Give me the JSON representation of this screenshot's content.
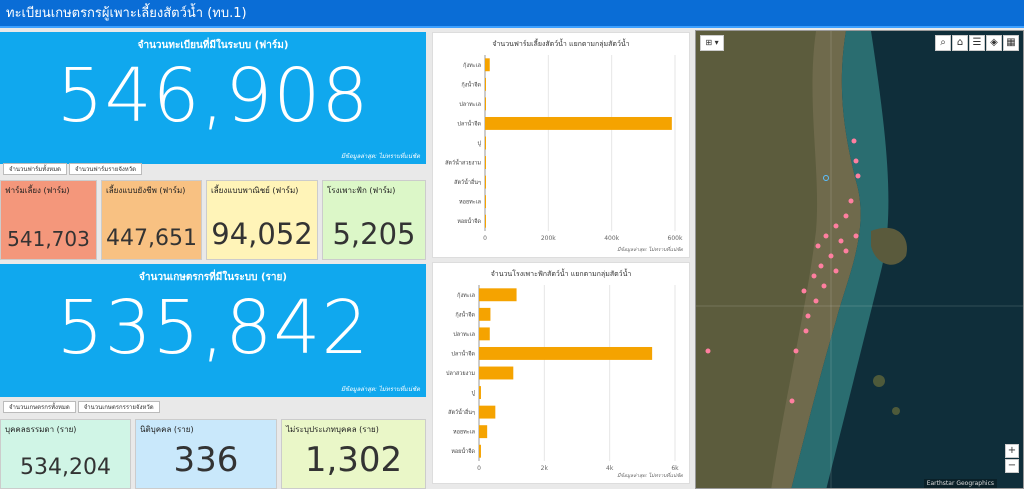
{
  "header": {
    "title": "ทะเบียนเกษตรกรผู้เพาะเลี้ยงสัตว์น้ำ (ทบ.1)"
  },
  "farms": {
    "title": "จำนวนทะเบียนที่มีในระบบ (ฟาร์ม)",
    "total": "546,908",
    "note": "มีข้อมูลล่าสุด: ไม่ทราบที่แน่ชัด",
    "tabs": [
      "จำนวนฟาร์มทั้งหมด",
      "จำนวนฟาร์มรายจังหวัด"
    ],
    "cards": [
      {
        "label": "ฟาร์มเลี้ยง (ฟาร์ม)",
        "value": "541,703",
        "bg": "#f4977b"
      },
      {
        "label": "เลี้ยงแบบยังชีพ (ฟาร์ม)",
        "value": "447,651",
        "bg": "#f8c182"
      },
      {
        "label": "เลี้ยงแบบพาณิชย์ (ฟาร์ม)",
        "value": "94,052",
        "bg": "#fff4b8"
      },
      {
        "label": "โรงเพาะฟัก (ฟาร์ม)",
        "value": "5,205",
        "bg": "#dcf7c8"
      }
    ]
  },
  "farmers": {
    "title": "จำนวนเกษตรกรที่มีในระบบ (ราย)",
    "total": "535,842",
    "note": "มีข้อมูลล่าสุด: ไม่ทราบที่แน่ชัด",
    "tabs": [
      "จำนวนเกษตรกรทั้งหมด",
      "จำนวนเกษตรกรรายจังหวัด"
    ],
    "cards": [
      {
        "label": "บุคคลธรรมดา (ราย)",
        "value": "534,204",
        "bg": "#d0f5e6"
      },
      {
        "label": "นิติบุคคล (ราย)",
        "value": "336",
        "bg": "#c9e8fb"
      },
      {
        "label": "ไม่ระบุประเภทบุคคล (ราย)",
        "value": "1,302",
        "bg": "#eaf7c8"
      }
    ]
  },
  "chart_data": [
    {
      "type": "bar",
      "orientation": "horizontal",
      "title": "จำนวนฟาร์มเลี้ยงสัตว์น้ำ แยกตามกลุ่มสัตว์น้ำ",
      "categories": [
        "กุ้งทะเล",
        "กุ้งน้ำจืด",
        "ปลาทะเล",
        "ปลาน้ำจืด",
        "ปู",
        "สัตว์น้ำสวยงาม",
        "สัตว์น้ำอื่นๆ",
        "หอยทะเล",
        "หอยน้ำจืด"
      ],
      "values": [
        15000,
        3000,
        2000,
        590000,
        1000,
        500,
        2000,
        500,
        500
      ],
      "xlim": [
        0,
        600000
      ],
      "ticks": [
        "0",
        "200k",
        "400k",
        "600k"
      ],
      "note": "มีข้อมูลล่าสุด: ไม่ทราบที่แน่ชัด",
      "color": "#f5a300"
    },
    {
      "type": "bar",
      "orientation": "horizontal",
      "title": "จำนวนโรงเพาะฟักสัตว์น้ำ แยกตามกลุ่มสัตว์น้ำ",
      "categories": [
        "กุ้งทะเล",
        "กุ้งน้ำจืด",
        "ปลาทะเล",
        "ปลาน้ำจืด",
        "ปลาสวยงาม",
        "ปู",
        "สัตว์น้ำอื่นๆ",
        "หอยทะเล",
        "หอยน้ำจืด"
      ],
      "values": [
        1150,
        350,
        330,
        5300,
        1050,
        60,
        500,
        250,
        60
      ],
      "xlim": [
        0,
        6000
      ],
      "ticks": [
        "0",
        "2k",
        "4k",
        "6k"
      ],
      "note": "มีข้อมูลล่าสุด: ไม่ทราบที่แน่ชัด",
      "color": "#f5a300"
    }
  ],
  "map": {
    "attribution": "Earthstar Geographics",
    "tools": [
      "search-icon",
      "home-icon",
      "list-icon",
      "layers-icon",
      "basemap-icon"
    ],
    "zoom_in": "+",
    "zoom_out": "−"
  }
}
